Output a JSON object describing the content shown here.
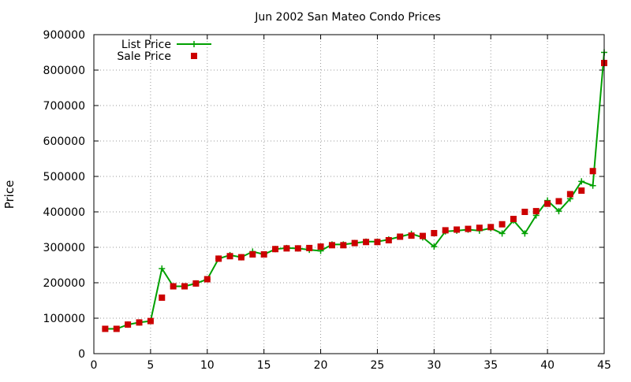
{
  "chart_data": {
    "type": "line",
    "title": "Jun 2002 San Mateo Condo Prices",
    "xlabel": "",
    "ylabel": "Price",
    "xlim": [
      0,
      45
    ],
    "ylim": [
      0,
      900000
    ],
    "xticks": [
      "0",
      "5",
      "10",
      "15",
      "20",
      "25",
      "30",
      "35",
      "40",
      "45"
    ],
    "yticks": [
      "0",
      "100000",
      "200000",
      "300000",
      "400000",
      "500000",
      "600000",
      "700000",
      "800000",
      "900000"
    ],
    "grid": true,
    "legend_position": "top-left",
    "x": [
      1,
      2,
      3,
      4,
      5,
      6,
      7,
      8,
      9,
      10,
      11,
      12,
      13,
      14,
      15,
      16,
      17,
      18,
      19,
      20,
      21,
      22,
      23,
      24,
      25,
      26,
      27,
      28,
      29,
      30,
      31,
      32,
      33,
      34,
      35,
      36,
      37,
      38,
      39,
      40,
      41,
      42,
      43,
      44,
      45
    ],
    "series": [
      {
        "name": "List Price",
        "style": "line+cross",
        "color": "#00a000",
        "values": [
          70000,
          70000,
          82000,
          88000,
          92000,
          240000,
          190000,
          190000,
          198000,
          210000,
          268000,
          278000,
          272000,
          288000,
          280000,
          295000,
          298000,
          297000,
          293000,
          290000,
          308000,
          308000,
          312000,
          316000,
          316000,
          322000,
          330000,
          338000,
          328000,
          302000,
          345000,
          347000,
          350000,
          347000,
          354000,
          339000,
          376000,
          339000,
          390000,
          432000,
          402000,
          437000,
          486000,
          474000,
          850000
        ]
      },
      {
        "name": "Sale Price",
        "style": "square-points",
        "color": "#cc0000",
        "values": [
          70000,
          70000,
          82000,
          88000,
          92000,
          158000,
          190000,
          190000,
          198000,
          210000,
          268000,
          275000,
          272000,
          280000,
          280000,
          295000,
          297000,
          297000,
          298000,
          302000,
          306000,
          306000,
          312000,
          315000,
          315000,
          320000,
          330000,
          333000,
          332000,
          340000,
          348000,
          350000,
          352000,
          355000,
          357000,
          365000,
          380000,
          400000,
          402000,
          423000,
          430000,
          450000,
          460000,
          515000,
          820000
        ]
      }
    ]
  }
}
